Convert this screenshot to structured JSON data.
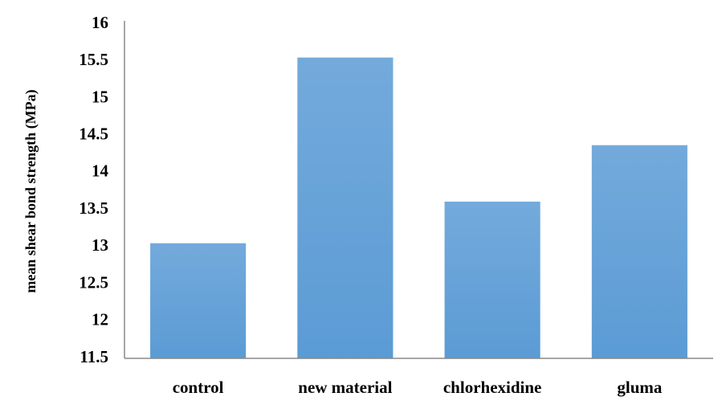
{
  "chart_data": {
    "type": "bar",
    "ylabel": "mean shear bond strength (MPa)",
    "categories": [
      "control",
      "new material",
      "chlorhexidine",
      "gluma"
    ],
    "values": [
      13.05,
      15.55,
      13.61,
      14.37
    ],
    "color": "#5b9bd5",
    "ylim": [
      11.5,
      16
    ],
    "yticks": [
      11.5,
      12,
      12.5,
      13,
      13.5,
      14,
      14.5,
      15,
      15.5,
      16
    ],
    "grid": false
  }
}
